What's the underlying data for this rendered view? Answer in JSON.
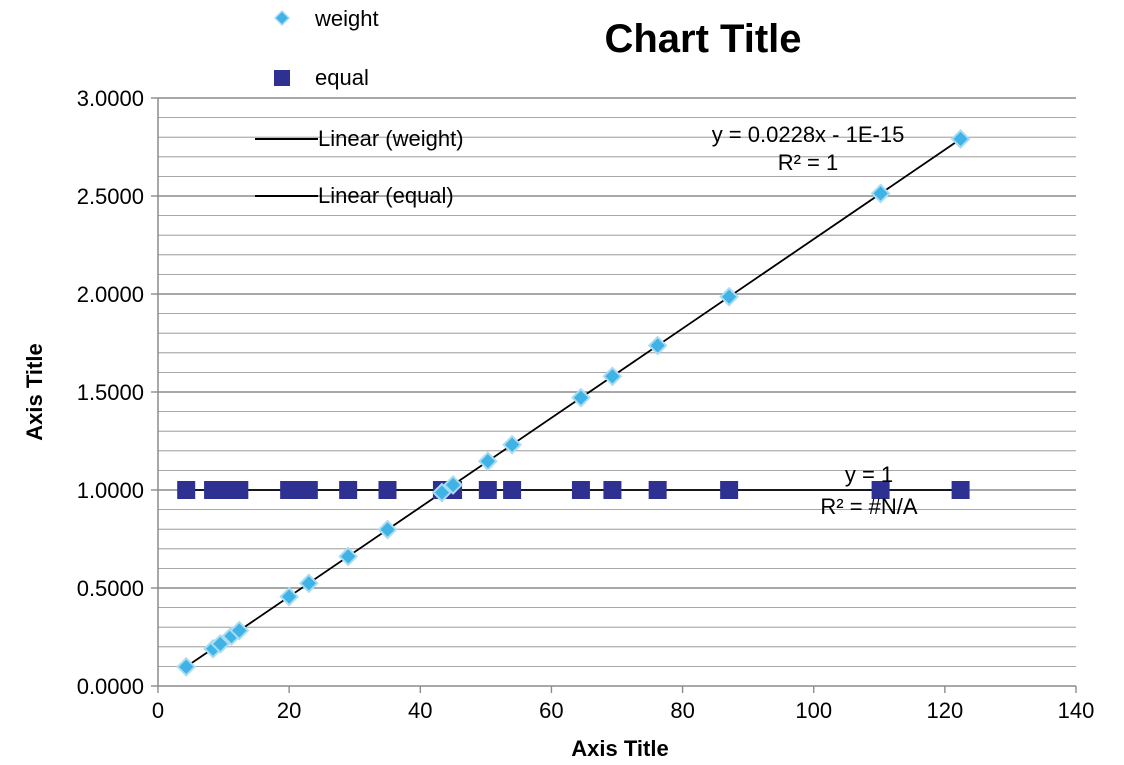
{
  "chart_data": {
    "type": "scatter",
    "title": "Chart Title",
    "xlabel": "Axis Title",
    "ylabel": "Axis Title",
    "xlim": [
      0,
      140
    ],
    "ylim": [
      0,
      3
    ],
    "x_ticks": [
      "0",
      "20",
      "40",
      "60",
      "80",
      "100",
      "120",
      "140"
    ],
    "y_ticks": [
      "0.0000",
      "0.5000",
      "1.0000",
      "1.5000",
      "2.0000",
      "2.5000",
      "3.0000"
    ],
    "grid": "horizontal major and minor",
    "legend_position": "top-left",
    "colors": {
      "weight": "#3fb3e6",
      "weight_outline": "#a9dcf2",
      "equal": "#2e3192",
      "trendline": "#000000",
      "gridline": "#8c8c8c"
    },
    "series": [
      {
        "name": "weight",
        "marker": "diamond",
        "points": [
          [
            4.3,
            0.098
          ],
          [
            8.4,
            0.19
          ],
          [
            9.5,
            0.215
          ],
          [
            11.2,
            0.255
          ],
          [
            12.4,
            0.283
          ],
          [
            20.0,
            0.456
          ],
          [
            23.0,
            0.524
          ],
          [
            29.0,
            0.661
          ],
          [
            35.0,
            0.798
          ],
          [
            43.3,
            0.987
          ],
          [
            45.0,
            1.026
          ],
          [
            50.3,
            1.147
          ],
          [
            54.0,
            1.231
          ],
          [
            64.5,
            1.471
          ],
          [
            69.3,
            1.58
          ],
          [
            76.2,
            1.737
          ],
          [
            87.1,
            1.986
          ],
          [
            110.2,
            2.513
          ],
          [
            122.4,
            2.791
          ]
        ]
      },
      {
        "name": "equal",
        "marker": "square",
        "points": [
          [
            4.3,
            1
          ],
          [
            8.4,
            1
          ],
          [
            9.5,
            1
          ],
          [
            10.5,
            1
          ],
          [
            11.2,
            1
          ],
          [
            12.4,
            1
          ],
          [
            20.0,
            1
          ],
          [
            21.5,
            1
          ],
          [
            23.0,
            1
          ],
          [
            29.0,
            1
          ],
          [
            35.0,
            1
          ],
          [
            43.3,
            1
          ],
          [
            45.0,
            1
          ],
          [
            50.3,
            1
          ],
          [
            54.0,
            1
          ],
          [
            64.5,
            1
          ],
          [
            69.3,
            1
          ],
          [
            76.2,
            1
          ],
          [
            87.1,
            1
          ],
          [
            110.2,
            1
          ],
          [
            122.4,
            1
          ]
        ]
      }
    ],
    "trendlines": [
      {
        "name": "Linear (weight)",
        "slope": 0.0228,
        "intercept": 0,
        "x_range": [
          4.3,
          122.4
        ],
        "equation": "y = 0.0228x - 1E-15",
        "r2": "R² = 1"
      },
      {
        "name": "Linear (equal)",
        "slope": 0,
        "intercept": 1,
        "x_range": [
          4.3,
          122.4
        ],
        "equation": "y = 1",
        "r2": "R² = #N/A"
      }
    ],
    "legend": [
      {
        "label": "weight",
        "symbol": "diamond"
      },
      {
        "label": "equal",
        "symbol": "square"
      },
      {
        "label": "Linear (weight)",
        "symbol": "line"
      },
      {
        "label": "Linear (equal)",
        "symbol": "line"
      }
    ]
  }
}
